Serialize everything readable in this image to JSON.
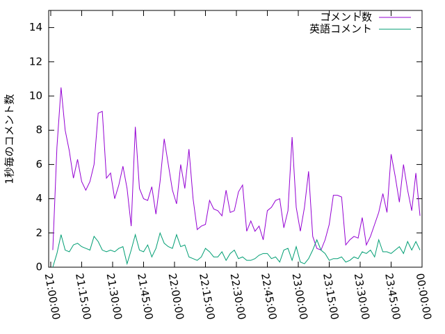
{
  "chart_data": {
    "type": "line",
    "ylabel": "1秒毎のコメント数",
    "x": [
      1,
      3,
      5,
      7,
      9,
      11,
      13,
      15,
      17,
      19,
      21,
      23,
      25,
      27,
      29,
      31,
      33,
      35,
      37,
      39,
      41,
      43,
      45,
      47,
      49,
      51,
      53,
      55,
      57,
      59,
      61,
      63,
      65,
      67,
      69,
      71,
      73,
      75,
      77,
      79,
      81,
      83,
      85,
      87,
      89,
      91,
      93,
      95,
      97,
      99,
      101,
      103,
      105,
      107,
      109,
      111,
      113,
      115,
      117,
      119,
      121,
      123,
      125,
      127,
      129,
      131,
      133,
      135,
      137,
      139,
      141,
      143,
      145,
      147,
      149,
      151,
      153,
      155,
      157,
      159,
      161,
      163,
      165,
      167,
      169,
      171,
      173,
      175,
      177,
      179
    ],
    "series": [
      {
        "name": "コメント数",
        "color": "#9400d3",
        "values": [
          1.0,
          7.0,
          10.5,
          8.0,
          6.8,
          5.2,
          6.3,
          5.0,
          4.5,
          5.0,
          6.0,
          9.0,
          9.1,
          5.2,
          5.5,
          4.0,
          4.8,
          5.9,
          4.6,
          2.4,
          8.2,
          4.6,
          4.0,
          3.9,
          4.7,
          3.1,
          5.0,
          7.5,
          6.0,
          4.5,
          3.7,
          6.0,
          4.6,
          6.9,
          4.0,
          2.2,
          2.4,
          2.5,
          3.9,
          3.4,
          3.3,
          3.0,
          4.5,
          3.2,
          3.3,
          4.4,
          4.8,
          2.1,
          2.7,
          2.1,
          2.4,
          1.6,
          3.3,
          3.5,
          3.9,
          4.0,
          2.3,
          3.3,
          7.6,
          3.5,
          2.1,
          3.5,
          5.6,
          1.8,
          1.1,
          1.0,
          1.6,
          2.5,
          4.2,
          4.2,
          4.1,
          1.3,
          1.6,
          1.8,
          1.7,
          2.9,
          1.3,
          1.8,
          2.5,
          3.2,
          4.3,
          3.2,
          6.6,
          5.3,
          3.8,
          6.0,
          4.5,
          3.3,
          5.5,
          3.0
        ]
      },
      {
        "name": "英語コメント",
        "color": "#009e73",
        "values": [
          0.0,
          0.8,
          1.9,
          1.0,
          0.9,
          1.3,
          1.4,
          1.2,
          1.1,
          1.0,
          1.8,
          1.5,
          1.0,
          0.9,
          1.0,
          0.9,
          1.1,
          1.2,
          0.2,
          1.0,
          1.9,
          1.0,
          0.9,
          1.3,
          0.6,
          1.1,
          2.0,
          1.4,
          1.2,
          1.1,
          1.9,
          1.2,
          1.3,
          0.6,
          0.5,
          0.4,
          0.6,
          1.1,
          0.9,
          0.6,
          0.6,
          0.9,
          0.4,
          0.8,
          1.0,
          0.5,
          0.6,
          0.4,
          0.4,
          0.5,
          0.7,
          0.8,
          0.8,
          0.5,
          0.6,
          0.3,
          1.0,
          1.1,
          0.4,
          1.2,
          0.3,
          0.2,
          0.5,
          1.0,
          1.6,
          1.0,
          0.8,
          0.4,
          0.5,
          0.5,
          0.6,
          0.3,
          0.4,
          0.6,
          0.5,
          0.9,
          0.8,
          1.0,
          0.6,
          1.6,
          0.9,
          0.9,
          0.8,
          1.0,
          1.2,
          0.8,
          1.5,
          1.0,
          1.5,
          1.0
        ]
      }
    ],
    "xlim": [
      -1,
      180
    ],
    "xticks": [
      {
        "value": 0,
        "label": "21:00:00"
      },
      {
        "value": 15,
        "label": "21:15:00"
      },
      {
        "value": 30,
        "label": "21:30:00"
      },
      {
        "value": 45,
        "label": "21:45:00"
      },
      {
        "value": 60,
        "label": "22:00:00"
      },
      {
        "value": 75,
        "label": "22:15:00"
      },
      {
        "value": 90,
        "label": "22:30:00"
      },
      {
        "value": 105,
        "label": "22:45:00"
      },
      {
        "value": 120,
        "label": "23:00:00"
      },
      {
        "value": 135,
        "label": "23:15:00"
      },
      {
        "value": 150,
        "label": "23:30:00"
      },
      {
        "value": 165,
        "label": "23:45:00"
      },
      {
        "value": 180,
        "label": "00:00:00"
      }
    ],
    "ylim": [
      0,
      15
    ],
    "yticks": [
      0,
      2,
      4,
      6,
      8,
      10,
      12,
      14
    ],
    "legend": "top-right"
  }
}
